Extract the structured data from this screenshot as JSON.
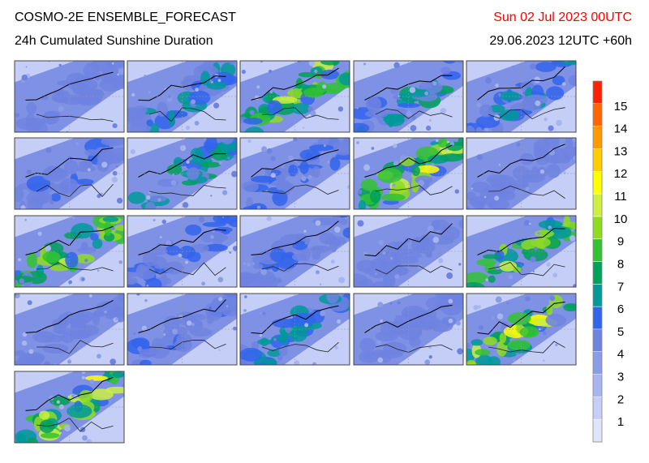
{
  "header": {
    "title": "COSMO-2E ENSEMBLE_FORECAST",
    "subtitle": "24h Cumulated Sunshine Duration",
    "valid_time": "Sun 02 Jul 2023 00UTC",
    "run_time": "29.06.2023 12UTC +60h"
  },
  "colorbar": {
    "levels": [
      1,
      2,
      3,
      4,
      5,
      6,
      7,
      8,
      9,
      10,
      11,
      12,
      13,
      14,
      15
    ],
    "colors": [
      "#dfe5fb",
      "#c4cef6",
      "#a8b6ef",
      "#8c9de8",
      "#6e82e0",
      "#3264ec",
      "#00999a",
      "#00a05a",
      "#33c232",
      "#8edb22",
      "#cdee44",
      "#ffff00",
      "#ffcc00",
      "#ff9900",
      "#ff6600",
      "#ff2200"
    ]
  }
}
